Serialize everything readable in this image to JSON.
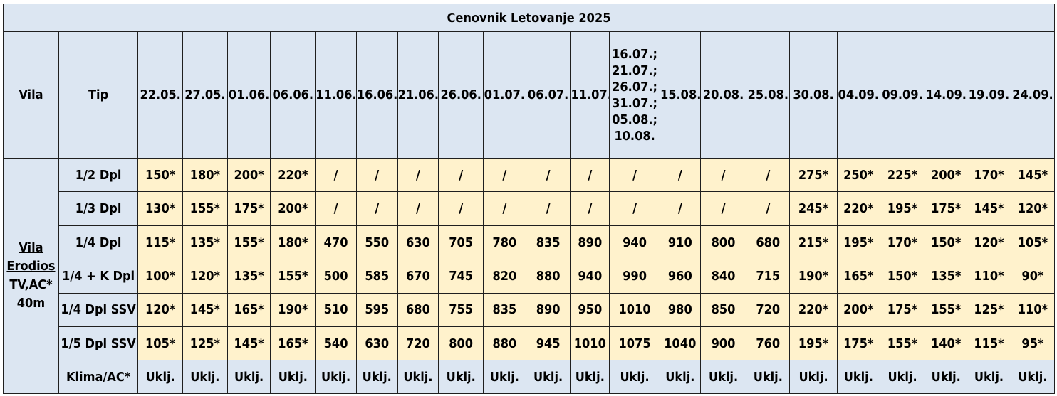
{
  "title": "Cenovnik Letovanje 2025",
  "header": {
    "vila_label": "Vila",
    "tip_label": "Tip",
    "dates": [
      "22.05.",
      "27.05.",
      "01.06.",
      "06.06.",
      "11.06.",
      "16.06.",
      "21.06.",
      "26.06.",
      "01.07.",
      "06.07.",
      "11.07.",
      [
        "16.07.;",
        "21.07.;",
        "26.07.;",
        "31.07.;",
        "05.08.;",
        "10.08."
      ],
      "15.08.",
      "20.08.",
      "25.08.",
      "30.08.",
      "04.09.",
      "09.09.",
      "14.09.",
      "19.09.",
      "24.09."
    ]
  },
  "villa": {
    "name_line1": "Vila",
    "name_line2": "Erodios",
    "amenities": "TV,AC*",
    "distance": "40m"
  },
  "rows": [
    {
      "tip": "1/2 Dpl",
      "values": [
        "150*",
        "180*",
        "200*",
        "220*",
        "/",
        "/",
        "/",
        "/",
        "/",
        "/",
        "/",
        "/",
        "/",
        "/",
        "/",
        "275*",
        "250*",
        "225*",
        "200*",
        "170*",
        "145*"
      ]
    },
    {
      "tip": "1/3 Dpl",
      "values": [
        "130*",
        "155*",
        "175*",
        "200*",
        "/",
        "/",
        "/",
        "/",
        "/",
        "/",
        "/",
        "/",
        "/",
        "/",
        "/",
        "245*",
        "220*",
        "195*",
        "175*",
        "145*",
        "120*"
      ]
    },
    {
      "tip": "1/4 Dpl",
      "values": [
        "115*",
        "135*",
        "155*",
        "180*",
        "470",
        "550",
        "630",
        "705",
        "780",
        "835",
        "890",
        "940",
        "910",
        "800",
        "680",
        "215*",
        "195*",
        "170*",
        "150*",
        "120*",
        "105*"
      ]
    },
    {
      "tip": "1/4 + K Dpl",
      "values": [
        "100*",
        "120*",
        "135*",
        "155*",
        "500",
        "585",
        "670",
        "745",
        "820",
        "880",
        "940",
        "990",
        "960",
        "840",
        "715",
        "190*",
        "165*",
        "150*",
        "135*",
        "110*",
        "90*"
      ]
    },
    {
      "tip": "1/4 Dpl SSV",
      "values": [
        "120*",
        "145*",
        "165*",
        "190*",
        "510",
        "595",
        "680",
        "755",
        "835",
        "890",
        "950",
        "1010",
        "980",
        "850",
        "720",
        "220*",
        "200*",
        "175*",
        "155*",
        "125*",
        "110*"
      ]
    },
    {
      "tip": "1/5 Dpl SSV",
      "values": [
        "105*",
        "125*",
        "145*",
        "165*",
        "540",
        "630",
        "720",
        "800",
        "880",
        "945",
        "1010",
        "1075",
        "1040",
        "900",
        "760",
        "195*",
        "175*",
        "155*",
        "140*",
        "115*",
        "95*"
      ]
    }
  ],
  "klima": {
    "tip": "Klima/AC*",
    "values": [
      "Uklj.",
      "Uklj.",
      "Uklj.",
      "Uklj.",
      "Uklj.",
      "Uklj.",
      "Uklj.",
      "Uklj.",
      "Uklj.",
      "Uklj.",
      "Uklj.",
      "Uklj.",
      "Uklj.",
      "Uklj.",
      "Uklj.",
      "Uklj.",
      "Uklj.",
      "Uklj.",
      "Uklj.",
      "Uklj.",
      "Uklj."
    ]
  },
  "colors": {
    "header_bg": "#dce6f2",
    "value_bg": "#fff2cc",
    "border": "#1f1f1f"
  }
}
